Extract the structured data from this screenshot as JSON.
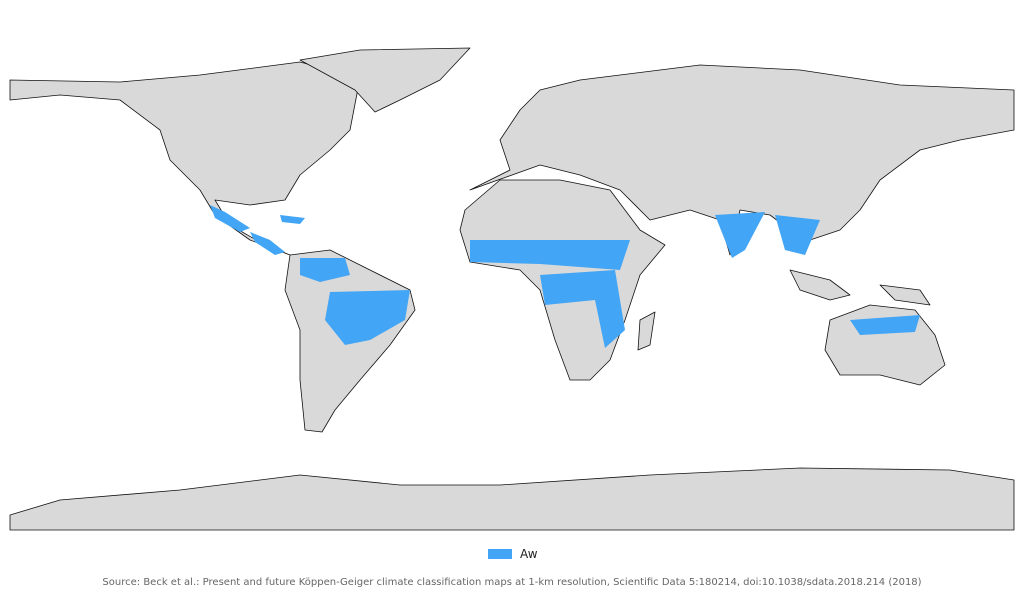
{
  "legend": {
    "items": [
      {
        "label": "Aw",
        "color": "#42a5f5"
      }
    ]
  },
  "source": "Source: Beck et al.: Present and future Köppen-Geiger climate classification maps at 1-km resolution, Scientific Data 5:180214, doi:10.1038/sdata.2018.214 (2018)"
}
